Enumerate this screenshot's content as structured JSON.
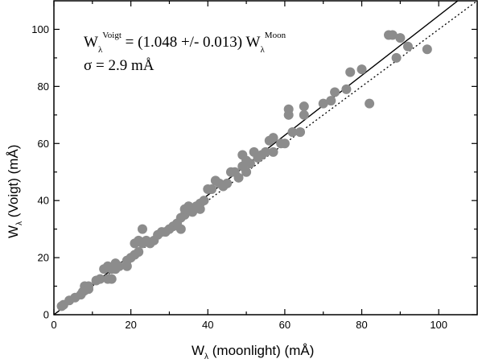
{
  "chart_data": {
    "type": "scatter",
    "xlabel": {
      "main": "W",
      "sub": "λ",
      "rest": " (moonlight) (mÅ)"
    },
    "ylabel": {
      "main": "W",
      "sub": "λ",
      "rest": " (Voigt) (mÅ)"
    },
    "xlim": [
      0,
      110
    ],
    "ylim": [
      0,
      110
    ],
    "xticks": [
      0,
      20,
      40,
      60,
      80,
      100
    ],
    "yticks": [
      0,
      20,
      40,
      60,
      80,
      100
    ],
    "grid": false,
    "annotation": {
      "line1": {
        "w1": "W",
        "sub1": "λ",
        "sup1": "Voigt",
        "mid": " = (1.048 +/- 0.013) W",
        "sub2": "λ",
        "sup2": "Moon"
      },
      "line2": "σ = 2.9 mÅ"
    },
    "fit_line": {
      "slope": 1.048,
      "intercept": 0,
      "style": "solid"
    },
    "identity_line": {
      "slope": 1.0,
      "intercept": 0,
      "style": "dotted"
    },
    "marker_color": "#8c8c8c",
    "points": [
      [
        2,
        3
      ],
      [
        2.5,
        3.5
      ],
      [
        4,
        5
      ],
      [
        5.5,
        6
      ],
      [
        7,
        7
      ],
      [
        7.5,
        8
      ],
      [
        8,
        8.5
      ],
      [
        8,
        10
      ],
      [
        9,
        10
      ],
      [
        9,
        9
      ],
      [
        11,
        12
      ],
      [
        12,
        12.5
      ],
      [
        13,
        16
      ],
      [
        14,
        17
      ],
      [
        14,
        12.5
      ],
      [
        15,
        12.5
      ],
      [
        15,
        16
      ],
      [
        16,
        18
      ],
      [
        16,
        16
      ],
      [
        17,
        17
      ],
      [
        19,
        17
      ],
      [
        19,
        19
      ],
      [
        20,
        20
      ],
      [
        21,
        21
      ],
      [
        21,
        25
      ],
      [
        22,
        26
      ],
      [
        22,
        22
      ],
      [
        23,
        25
      ],
      [
        23,
        30
      ],
      [
        24,
        26
      ],
      [
        25,
        25
      ],
      [
        26,
        26
      ],
      [
        27,
        28
      ],
      [
        28,
        29
      ],
      [
        29,
        29
      ],
      [
        30,
        30
      ],
      [
        31,
        31
      ],
      [
        32,
        32
      ],
      [
        33,
        30
      ],
      [
        33,
        34
      ],
      [
        34,
        35
      ],
      [
        34,
        37
      ],
      [
        35,
        37
      ],
      [
        35,
        38
      ],
      [
        36,
        36
      ],
      [
        37,
        38
      ],
      [
        38,
        39
      ],
      [
        38,
        37
      ],
      [
        39,
        40
      ],
      [
        40,
        44
      ],
      [
        41,
        44
      ],
      [
        42,
        47
      ],
      [
        43,
        46
      ],
      [
        44,
        45
      ],
      [
        45,
        46
      ],
      [
        46,
        50
      ],
      [
        47,
        50
      ],
      [
        48,
        48
      ],
      [
        49,
        52
      ],
      [
        49,
        56
      ],
      [
        50,
        54
      ],
      [
        50,
        50
      ],
      [
        51,
        53
      ],
      [
        52,
        57
      ],
      [
        53,
        55
      ],
      [
        54,
        56
      ],
      [
        55,
        57
      ],
      [
        56,
        61
      ],
      [
        57,
        62
      ],
      [
        57,
        57
      ],
      [
        59,
        60
      ],
      [
        60,
        60
      ],
      [
        61,
        70
      ],
      [
        61,
        72
      ],
      [
        62,
        64
      ],
      [
        64,
        64
      ],
      [
        65,
        70
      ],
      [
        65,
        73
      ],
      [
        70,
        74
      ],
      [
        72,
        75
      ],
      [
        73,
        78
      ],
      [
        76,
        79
      ],
      [
        77,
        85
      ],
      [
        80,
        86
      ],
      [
        82,
        74
      ],
      [
        87,
        98
      ],
      [
        88,
        98
      ],
      [
        89,
        90
      ],
      [
        90,
        97
      ],
      [
        92,
        94
      ],
      [
        97,
        93
      ]
    ]
  }
}
